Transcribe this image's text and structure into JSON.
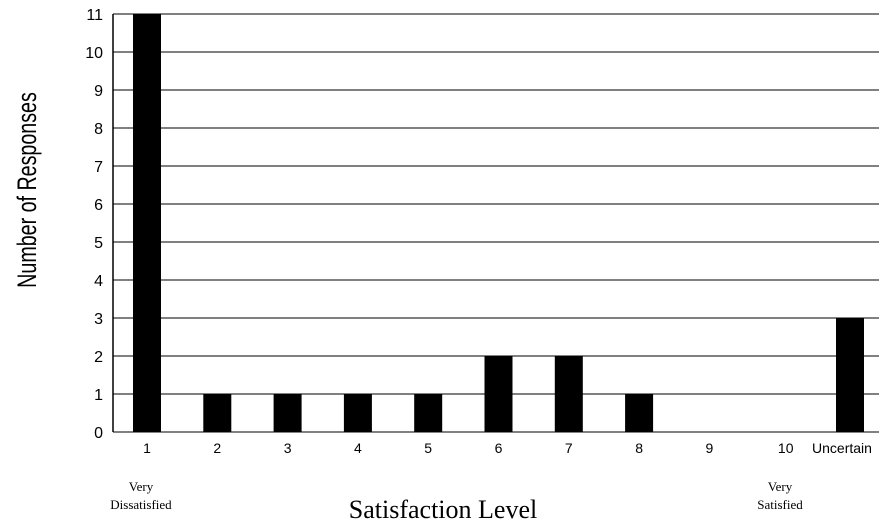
{
  "chart_data": {
    "type": "bar",
    "categories": [
      "1",
      "2",
      "3",
      "4",
      "5",
      "6",
      "7",
      "8",
      "9",
      "10",
      "Uncertain"
    ],
    "values": [
      11,
      1,
      1,
      1,
      1,
      2,
      2,
      1,
      0,
      0,
      3
    ],
    "title": "",
    "xlabel": "Satisfaction Level",
    "ylabel": "Number of Responses",
    "ylim": [
      0,
      11
    ],
    "yticks": [
      0,
      1,
      2,
      3,
      4,
      5,
      6,
      7,
      8,
      9,
      10,
      11
    ],
    "grid": true,
    "bar_color": "#000000",
    "annotations": {
      "low_line1": "Very",
      "low_line2": "Dissatisfied",
      "high_line1": "Very",
      "high_line2": "Satisfied"
    }
  }
}
